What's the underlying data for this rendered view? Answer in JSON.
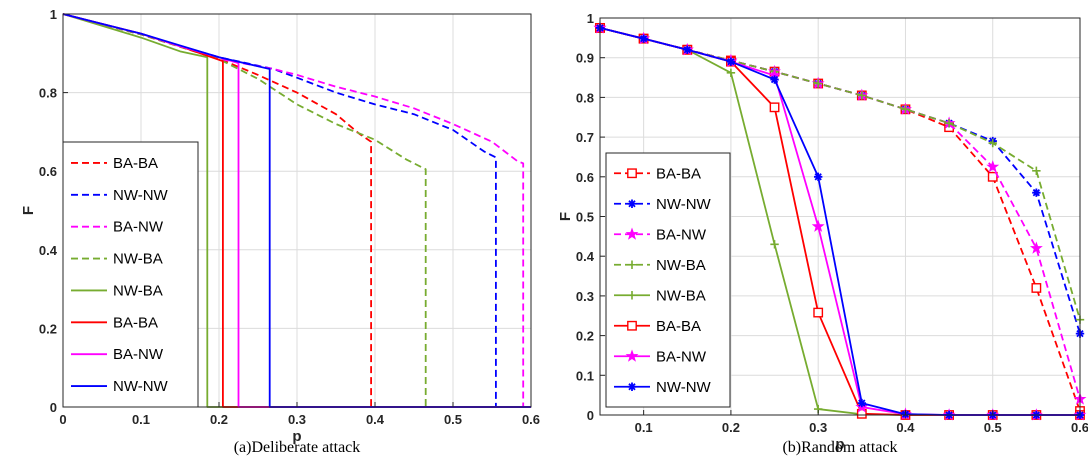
{
  "chart_data": [
    {
      "type": "line",
      "caption": "(a)Deliberate attack",
      "xlabel": "p",
      "ylabel": "F",
      "xlim": [
        0,
        0.6
      ],
      "ylim": [
        0,
        1
      ],
      "xticks": [
        0,
        0.1,
        0.2,
        0.3,
        0.4,
        0.5,
        0.6
      ],
      "xtick_labels": [
        "0",
        "0.1",
        "0.2",
        "0.3",
        "0.4",
        "0.5",
        "0.6"
      ],
      "yticks": [
        0,
        0.2,
        0.4,
        0.6,
        0.8,
        1
      ],
      "ytick_labels": [
        "0",
        "0.2",
        "0.4",
        "0.6",
        "0.8",
        "1"
      ],
      "grid": true,
      "legend_position": "bottom-left",
      "series": [
        {
          "name": "BA-BA",
          "color": "#ff0000",
          "dash": true,
          "marker": "none",
          "points": [
            [
              0,
              1
            ],
            [
              0.1,
              0.948
            ],
            [
              0.2,
              0.886
            ],
            [
              0.25,
              0.845
            ],
            [
              0.3,
              0.8
            ],
            [
              0.35,
              0.745
            ],
            [
              0.38,
              0.695
            ],
            [
              0.395,
              0.675
            ],
            [
              0.395,
              0
            ],
            [
              0.6,
              0
            ]
          ]
        },
        {
          "name": "NW-NW",
          "color": "#0000ff",
          "dash": true,
          "marker": "none",
          "points": [
            [
              0,
              1
            ],
            [
              0.1,
              0.948
            ],
            [
              0.2,
              0.89
            ],
            [
              0.27,
              0.86
            ],
            [
              0.3,
              0.838
            ],
            [
              0.35,
              0.8
            ],
            [
              0.4,
              0.77
            ],
            [
              0.45,
              0.745
            ],
            [
              0.5,
              0.705
            ],
            [
              0.54,
              0.65
            ],
            [
              0.555,
              0.635
            ],
            [
              0.555,
              0
            ],
            [
              0.6,
              0
            ]
          ]
        },
        {
          "name": "BA-NW",
          "color": "#ff00ff",
          "dash": true,
          "marker": "none",
          "points": [
            [
              0,
              1
            ],
            [
              0.1,
              0.948
            ],
            [
              0.2,
              0.886
            ],
            [
              0.27,
              0.86
            ],
            [
              0.3,
              0.845
            ],
            [
              0.35,
              0.815
            ],
            [
              0.4,
              0.79
            ],
            [
              0.45,
              0.76
            ],
            [
              0.5,
              0.72
            ],
            [
              0.55,
              0.675
            ],
            [
              0.583,
              0.625
            ],
            [
              0.59,
              0.62
            ],
            [
              0.59,
              0
            ],
            [
              0.6,
              0
            ]
          ]
        },
        {
          "name": "NW-BA",
          "color": "#77ac30",
          "dash": true,
          "marker": "none",
          "points": [
            [
              0,
              1
            ],
            [
              0.1,
              0.948
            ],
            [
              0.2,
              0.885
            ],
            [
              0.25,
              0.835
            ],
            [
              0.3,
              0.77
            ],
            [
              0.35,
              0.72
            ],
            [
              0.4,
              0.68
            ],
            [
              0.44,
              0.63
            ],
            [
              0.465,
              0.605
            ],
            [
              0.465,
              0
            ],
            [
              0.6,
              0
            ]
          ]
        },
        {
          "name": "NW-BA",
          "color": "#77ac30",
          "dash": false,
          "marker": "none",
          "points": [
            [
              0,
              1
            ],
            [
              0.05,
              0.97
            ],
            [
              0.1,
              0.94
            ],
            [
              0.15,
              0.905
            ],
            [
              0.185,
              0.89
            ],
            [
              0.185,
              0
            ],
            [
              0.6,
              0
            ]
          ]
        },
        {
          "name": "BA-BA",
          "color": "#ff0000",
          "dash": false,
          "marker": "none",
          "points": [
            [
              0,
              1
            ],
            [
              0.05,
              0.975
            ],
            [
              0.1,
              0.95
            ],
            [
              0.15,
              0.918
            ],
            [
              0.205,
              0.88
            ],
            [
              0.205,
              0
            ],
            [
              0.6,
              0
            ]
          ]
        },
        {
          "name": "BA-NW",
          "color": "#ff00ff",
          "dash": false,
          "marker": "none",
          "points": [
            [
              0,
              1
            ],
            [
              0.05,
              0.975
            ],
            [
              0.1,
              0.95
            ],
            [
              0.15,
              0.918
            ],
            [
              0.2,
              0.89
            ],
            [
              0.225,
              0.875
            ],
            [
              0.225,
              0
            ],
            [
              0.6,
              0
            ]
          ]
        },
        {
          "name": "NW-NW",
          "color": "#0000ff",
          "dash": false,
          "marker": "none",
          "points": [
            [
              0,
              1
            ],
            [
              0.05,
              0.975
            ],
            [
              0.1,
              0.95
            ],
            [
              0.15,
              0.92
            ],
            [
              0.2,
              0.89
            ],
            [
              0.265,
              0.86
            ],
            [
              0.265,
              0
            ],
            [
              0.6,
              0
            ]
          ]
        }
      ]
    },
    {
      "type": "line",
      "caption": "(b)Random attack",
      "xlabel": "p",
      "ylabel": "F",
      "xlim": [
        0.05,
        0.6
      ],
      "ylim": [
        0,
        1
      ],
      "xticks": [
        0.1,
        0.2,
        0.3,
        0.4,
        0.5,
        0.6
      ],
      "xtick_labels": [
        "0.1",
        "0.2",
        "0.3",
        "0.4",
        "0.5",
        "0.6"
      ],
      "yticks": [
        0,
        0.1,
        0.2,
        0.3,
        0.4,
        0.5,
        0.6,
        0.7,
        0.8,
        0.9,
        1
      ],
      "ytick_labels": [
        "0",
        "0.1",
        "0.2",
        "0.3",
        "0.4",
        "0.5",
        "0.6",
        "0.7",
        "0.8",
        "0.9",
        "1"
      ],
      "grid": true,
      "legend_position": "bottom-left",
      "series": [
        {
          "name": "BA-BA",
          "color": "#ff0000",
          "dash": true,
          "marker": "square",
          "points": [
            [
              0.05,
              0.975
            ],
            [
              0.1,
              0.948
            ],
            [
              0.15,
              0.92
            ],
            [
              0.2,
              0.893
            ],
            [
              0.25,
              0.865
            ],
            [
              0.3,
              0.835
            ],
            [
              0.35,
              0.805
            ],
            [
              0.4,
              0.77
            ],
            [
              0.45,
              0.725
            ],
            [
              0.5,
              0.6
            ],
            [
              0.55,
              0.32
            ],
            [
              0.6,
              0.01
            ]
          ]
        },
        {
          "name": "NW-NW",
          "color": "#0000ff",
          "dash": true,
          "marker": "asterisk",
          "points": [
            [
              0.05,
              0.975
            ],
            [
              0.1,
              0.948
            ],
            [
              0.15,
              0.92
            ],
            [
              0.2,
              0.893
            ],
            [
              0.25,
              0.865
            ],
            [
              0.3,
              0.835
            ],
            [
              0.35,
              0.805
            ],
            [
              0.4,
              0.77
            ],
            [
              0.45,
              0.735
            ],
            [
              0.5,
              0.69
            ],
            [
              0.55,
              0.56
            ],
            [
              0.6,
              0.205
            ]
          ]
        },
        {
          "name": "BA-NW",
          "color": "#ff00ff",
          "dash": true,
          "marker": "star",
          "points": [
            [
              0.05,
              0.975
            ],
            [
              0.1,
              0.948
            ],
            [
              0.15,
              0.92
            ],
            [
              0.2,
              0.893
            ],
            [
              0.25,
              0.865
            ],
            [
              0.3,
              0.835
            ],
            [
              0.35,
              0.805
            ],
            [
              0.4,
              0.77
            ],
            [
              0.45,
              0.735
            ],
            [
              0.5,
              0.625
            ],
            [
              0.55,
              0.42
            ],
            [
              0.6,
              0.04
            ]
          ]
        },
        {
          "name": "NW-BA",
          "color": "#77ac30",
          "dash": true,
          "marker": "plus",
          "points": [
            [
              0.05,
              0.975
            ],
            [
              0.1,
              0.948
            ],
            [
              0.15,
              0.92
            ],
            [
              0.2,
              0.893
            ],
            [
              0.25,
              0.865
            ],
            [
              0.3,
              0.835
            ],
            [
              0.35,
              0.805
            ],
            [
              0.4,
              0.77
            ],
            [
              0.45,
              0.735
            ],
            [
              0.5,
              0.685
            ],
            [
              0.55,
              0.615
            ],
            [
              0.6,
              0.24
            ]
          ]
        },
        {
          "name": "NW-BA",
          "color": "#77ac30",
          "dash": false,
          "marker": "plus",
          "points": [
            [
              0.05,
              0.975
            ],
            [
              0.1,
              0.948
            ],
            [
              0.15,
              0.92
            ],
            [
              0.2,
              0.862
            ],
            [
              0.25,
              0.43
            ],
            [
              0.3,
              0.015
            ],
            [
              0.35,
              0.002
            ],
            [
              0.4,
              0
            ],
            [
              0.45,
              0
            ],
            [
              0.5,
              0
            ],
            [
              0.55,
              0
            ],
            [
              0.6,
              0
            ]
          ]
        },
        {
          "name": "BA-BA",
          "color": "#ff0000",
          "dash": false,
          "marker": "square",
          "points": [
            [
              0.05,
              0.975
            ],
            [
              0.1,
              0.948
            ],
            [
              0.15,
              0.92
            ],
            [
              0.2,
              0.89
            ],
            [
              0.25,
              0.775
            ],
            [
              0.3,
              0.258
            ],
            [
              0.35,
              0.003
            ],
            [
              0.4,
              0
            ],
            [
              0.45,
              0
            ],
            [
              0.5,
              0
            ],
            [
              0.55,
              0
            ],
            [
              0.6,
              0
            ]
          ]
        },
        {
          "name": "BA-NW",
          "color": "#ff00ff",
          "dash": false,
          "marker": "star",
          "points": [
            [
              0.05,
              0.975
            ],
            [
              0.1,
              0.948
            ],
            [
              0.15,
              0.92
            ],
            [
              0.2,
              0.89
            ],
            [
              0.25,
              0.855
            ],
            [
              0.3,
              0.475
            ],
            [
              0.35,
              0.02
            ],
            [
              0.4,
              0.002
            ],
            [
              0.45,
              0
            ],
            [
              0.5,
              0
            ],
            [
              0.55,
              0
            ],
            [
              0.6,
              0
            ]
          ]
        },
        {
          "name": "NW-NW",
          "color": "#0000ff",
          "dash": false,
          "marker": "asterisk",
          "points": [
            [
              0.05,
              0.975
            ],
            [
              0.1,
              0.948
            ],
            [
              0.15,
              0.92
            ],
            [
              0.2,
              0.89
            ],
            [
              0.25,
              0.845
            ],
            [
              0.3,
              0.6
            ],
            [
              0.35,
              0.03
            ],
            [
              0.4,
              0.002
            ],
            [
              0.45,
              0
            ],
            [
              0.5,
              0
            ],
            [
              0.55,
              0
            ],
            [
              0.6,
              0
            ]
          ]
        }
      ]
    }
  ]
}
